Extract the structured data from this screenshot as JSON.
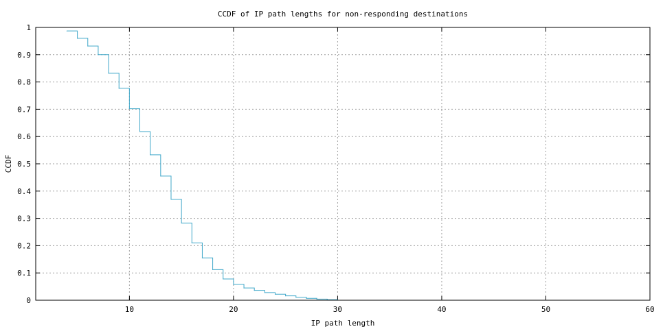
{
  "chart_data": {
    "type": "line",
    "step": true,
    "title": "CCDF of IP path lengths for non-responding destinations",
    "xlabel": "IP path length",
    "ylabel": "CCDF",
    "xlim": [
      1,
      60
    ],
    "ylim": [
      0,
      1
    ],
    "xticks": [
      10,
      20,
      30,
      40,
      50,
      60
    ],
    "yticks": [
      0,
      0.1,
      0.2,
      0.3,
      0.4,
      0.5,
      0.6,
      0.7,
      0.8,
      0.9,
      1
    ],
    "grid": true,
    "series_color": "#3fa7c9",
    "series": [
      {
        "x": [
          4,
          5,
          6,
          7,
          8,
          9,
          10,
          11,
          12,
          13,
          14,
          15,
          16,
          17,
          18,
          19,
          20,
          21,
          22,
          23,
          24,
          25,
          26,
          27,
          28,
          29,
          30
        ],
        "y": [
          0.987,
          0.96,
          0.932,
          0.9,
          0.832,
          0.777,
          0.702,
          0.618,
          0.533,
          0.455,
          0.37,
          0.283,
          0.21,
          0.155,
          0.112,
          0.078,
          0.058,
          0.045,
          0.036,
          0.028,
          0.022,
          0.016,
          0.011,
          0.007,
          0.004,
          0.002,
          0
        ]
      }
    ]
  }
}
